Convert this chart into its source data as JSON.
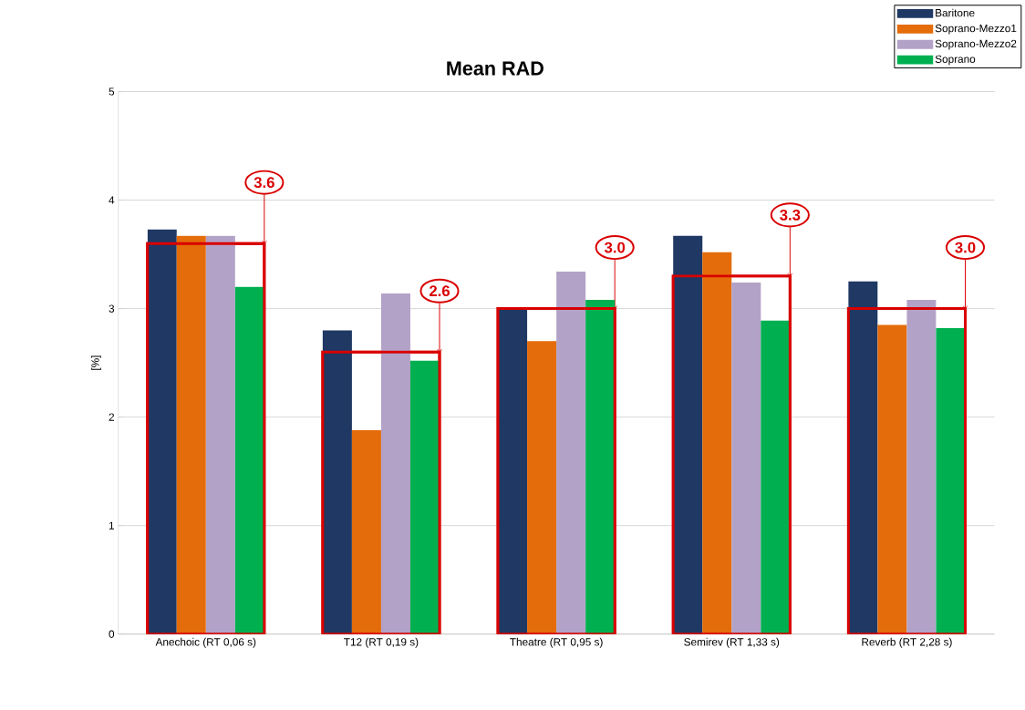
{
  "chart_data": {
    "type": "bar",
    "title": "Mean RAD",
    "ylabel": "[%]",
    "categories": [
      "Anechoic (RT 0,06 s)",
      "T12 (RT 0,19 s)",
      "Theatre (RT 0,95 s)",
      "Semirev (RT 1,33 s)",
      "Reverb (RT 2,28 s)"
    ],
    "series": [
      {
        "name": "Baritone",
        "color": "#1f3864",
        "values": [
          3.73,
          2.8,
          3.0,
          3.67,
          3.25
        ]
      },
      {
        "name": "Soprano-Mezzo1",
        "color": "#e46c0a",
        "values": [
          3.67,
          1.88,
          2.7,
          3.52,
          2.85
        ]
      },
      {
        "name": "Soprano-Mezzo2",
        "color": "#b3a2c7",
        "values": [
          3.67,
          3.14,
          3.34,
          3.24,
          3.08
        ]
      },
      {
        "name": "Soprano",
        "color": "#00b050",
        "values": [
          3.2,
          2.52,
          3.08,
          2.89,
          2.82
        ]
      },
      {
        "color": "#d90000",
        "values": [
          3.6,
          2.6,
          3.0,
          3.3,
          3.0
        ],
        "value_labels": [
          "3.6",
          "2.6",
          "3.0",
          "3.3",
          "3.0"
        ]
      }
    ],
    "ylim": [
      0,
      5
    ],
    "yticks": [
      0,
      1,
      2,
      3,
      4,
      5
    ],
    "grid": "y",
    "legend": "top right"
  }
}
